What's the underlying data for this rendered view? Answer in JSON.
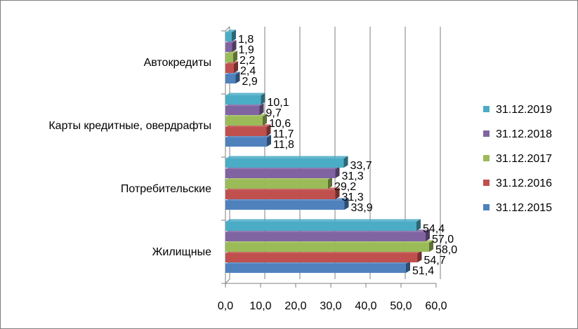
{
  "chart_data": {
    "type": "bar",
    "orientation": "horizontal",
    "three_d": true,
    "categories": [
      "Жилищные",
      "Потребительские",
      "Карты кредитные, овердрафты",
      "Автокредиты"
    ],
    "series": [
      {
        "name": "31.12.2015",
        "color": "#4f81bd",
        "values": [
          51.4,
          33.9,
          11.8,
          2.9
        ],
        "labels": [
          "51,4",
          "33,9",
          "11,8",
          "2,9"
        ]
      },
      {
        "name": "31.12.2016",
        "color": "#c0504d",
        "values": [
          54.7,
          31.3,
          11.7,
          2.4
        ],
        "labels": [
          "54,7",
          "31,3",
          "11,7",
          "2,4"
        ]
      },
      {
        "name": "31.12.2017",
        "color": "#9bbb59",
        "values": [
          58.0,
          29.2,
          10.6,
          2.2
        ],
        "labels": [
          "58,0",
          "29,2",
          "10,6",
          "2,2"
        ]
      },
      {
        "name": "31.12.2018",
        "color": "#8064a2",
        "values": [
          57.0,
          31.3,
          9.7,
          1.9
        ],
        "labels": [
          "57,0",
          "31,3",
          "9,7",
          "1,9"
        ]
      },
      {
        "name": "31.12.2019",
        "color": "#4bacc6",
        "values": [
          54.4,
          33.7,
          10.1,
          1.8
        ],
        "labels": [
          "54,4",
          "33,7",
          "10,1",
          "1,8"
        ]
      }
    ],
    "xlim": [
      0,
      60
    ],
    "xticks": [
      0,
      10,
      20,
      30,
      40,
      50,
      60
    ],
    "xtick_labels": [
      "0,0",
      "10,0",
      "20,0",
      "30,0",
      "40,0",
      "50,0",
      "60,0"
    ],
    "grid": "vertical",
    "legend": {
      "position": "right",
      "order": [
        "31.12.2019",
        "31.12.2018",
        "31.12.2017",
        "31.12.2016",
        "31.12.2015"
      ]
    }
  }
}
